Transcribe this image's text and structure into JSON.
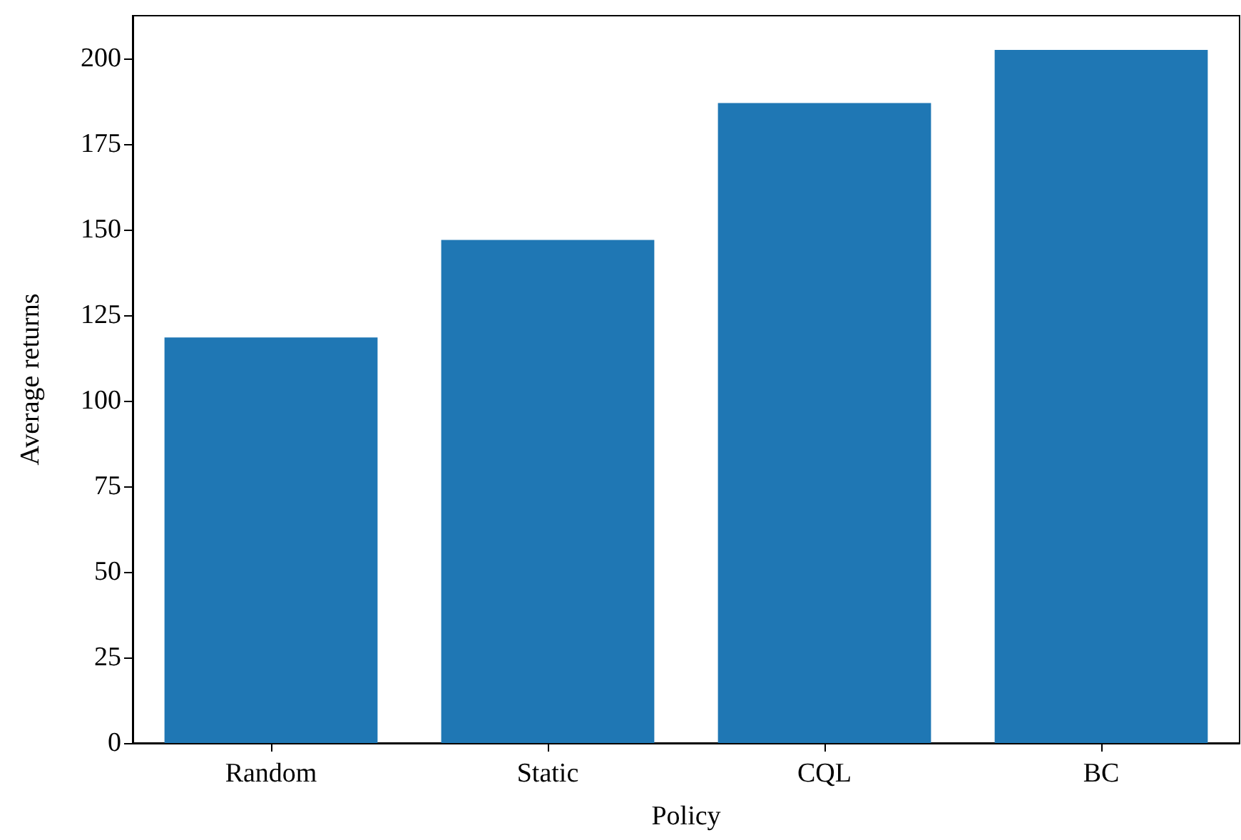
{
  "chart_data": {
    "type": "bar",
    "xlabel": "Policy",
    "ylabel": "Average returns",
    "categories": [
      "Random",
      "Static",
      "CQL",
      "BC"
    ],
    "values": [
      118.5,
      147,
      187,
      202.5
    ],
    "color": "#1f77b4",
    "ylim": [
      0,
      212.5
    ],
    "yticks": [
      0,
      25,
      50,
      75,
      100,
      125,
      150,
      175,
      200
    ],
    "grid": false
  }
}
